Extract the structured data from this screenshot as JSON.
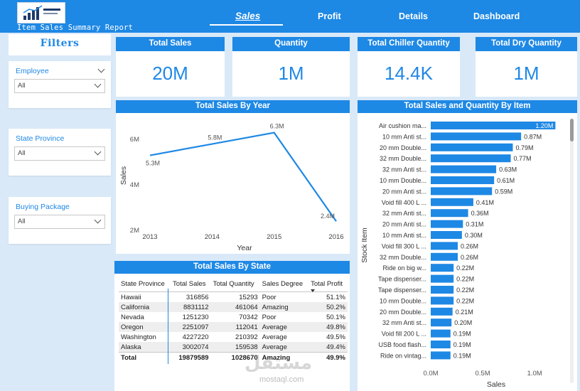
{
  "header": {
    "logo_label": "Item Sales Summary Report",
    "tabs": [
      {
        "label": "Sales",
        "active": true
      },
      {
        "label": "Profit",
        "active": false
      },
      {
        "label": "Details",
        "active": false
      },
      {
        "label": "Dashboard",
        "active": false
      }
    ]
  },
  "filters": {
    "title": "Filters",
    "slicers": [
      {
        "label": "Employee",
        "value": "All"
      },
      {
        "label": "State Province",
        "value": "All"
      },
      {
        "label": "Buying Package",
        "value": "All"
      }
    ]
  },
  "kpis": [
    {
      "title": "Total Sales",
      "value": "20M"
    },
    {
      "title": "Quantity",
      "value": "1M"
    },
    {
      "title": "Total Chiller Quantity",
      "value": "14.4K"
    },
    {
      "title": "Total Dry Quantity",
      "value": "1M"
    }
  ],
  "colors": {
    "accent": "#1e88e5",
    "background": "#d9e9f8"
  },
  "chart_data": [
    {
      "type": "line",
      "title": "Total Sales By Year",
      "xlabel": "Year",
      "ylabel": "Sales",
      "x": [
        "2013",
        "2014",
        "2015",
        "2016"
      ],
      "values": [
        5.3,
        5.8,
        6.3,
        2.4
      ],
      "data_labels": [
        "5.3M",
        "5.8M",
        "6.3M",
        "2.4M"
      ],
      "y_ticks": [
        "2M",
        "4M",
        "6M"
      ],
      "ylim": [
        2,
        6.6
      ]
    },
    {
      "type": "bar",
      "orientation": "horizontal",
      "title": "Total Sales and Quantity By Item",
      "xlabel": "Sales",
      "ylabel": "Stock Item",
      "x_ticks": [
        "0.0M",
        "0.5M",
        "1.0M"
      ],
      "xlim": [
        0,
        1.3
      ],
      "categories": [
        "Air cushion ma...",
        "10 mm Anti st...",
        "20 mm Double...",
        "32 mm Double...",
        "32 mm Anti st...",
        "10 mm Double...",
        "20 mm Anti st...",
        "Void fill 400 L ...",
        "32 mm Anti st...",
        "20 mm Anti st...",
        "10 mm Anti st...",
        "Void fill 300 L ...",
        "32 mm Double...",
        "Ride on big w...",
        "Tape dispenser...",
        "Tape dispenser...",
        "10 mm Double...",
        "20 mm Double...",
        "32 mm Anti st...",
        "Void fill 200 L ...",
        "USB food flash...",
        "Ride on vintag..."
      ],
      "values": [
        1.2,
        0.87,
        0.79,
        0.77,
        0.63,
        0.61,
        0.59,
        0.41,
        0.36,
        0.31,
        0.3,
        0.26,
        0.26,
        0.22,
        0.22,
        0.22,
        0.22,
        0.21,
        0.2,
        0.19,
        0.19,
        0.19
      ],
      "data_labels": [
        "1.20M",
        "0.87M",
        "0.79M",
        "0.77M",
        "0.63M",
        "0.61M",
        "0.59M",
        "0.41M",
        "0.36M",
        "0.31M",
        "0.30M",
        "0.26M",
        "0.26M",
        "0.22M",
        "0.22M",
        "0.22M",
        "0.22M",
        "0.21M",
        "0.20M",
        "0.19M",
        "0.19M",
        "0.19M"
      ]
    }
  ],
  "state_table": {
    "title": "Total Sales By State",
    "columns": [
      "State Province",
      "Total Sales",
      "Total Quantity",
      "Sales Degree",
      "Total Profit"
    ],
    "rows": [
      [
        "Hawaii",
        "316856",
        "15293",
        "Poor",
        "51.1%"
      ],
      [
        "California",
        "8831112",
        "461064",
        "Amazing",
        "50.2%"
      ],
      [
        "Nevada",
        "1251230",
        "70342",
        "Poor",
        "50.1%"
      ],
      [
        "Oregon",
        "2251097",
        "112041",
        "Average",
        "49.8%"
      ],
      [
        "Washington",
        "4227220",
        "210392",
        "Average",
        "49.5%"
      ],
      [
        "Alaska",
        "3002074",
        "159538",
        "Average",
        "49.4%"
      ]
    ],
    "total": [
      "Total",
      "19879589",
      "1028670",
      "Amazing",
      "49.9%"
    ]
  },
  "watermark": {
    "arabic": "مستقل",
    "latin": "mostaql.com"
  }
}
